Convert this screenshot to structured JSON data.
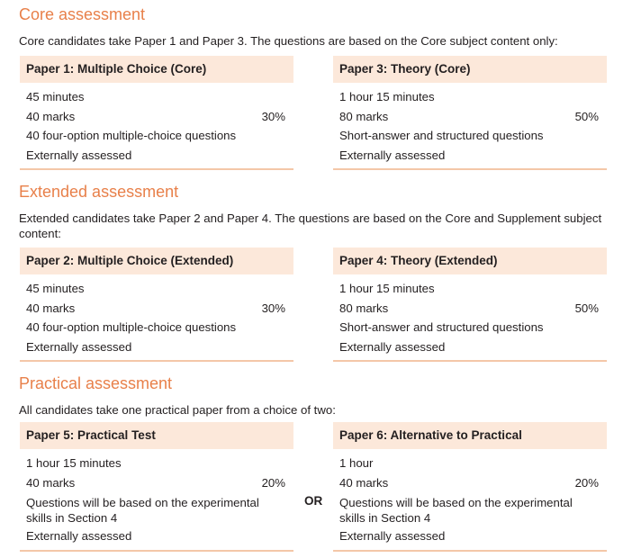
{
  "sections": [
    {
      "title": "Core assessment",
      "description": "Core candidates take Paper 1 and Paper 3. The questions are based on the Core subject content only:",
      "papers": [
        {
          "name": "Paper 1: Multiple Choice (Core)",
          "duration": "45 minutes",
          "marks": "40 marks",
          "weighting": "30%",
          "questions": "40 four-option multiple-choice questions",
          "assessment": "Externally assessed"
        },
        {
          "name": "Paper 3: Theory (Core)",
          "duration": "1 hour 15 minutes",
          "marks": "80 marks",
          "weighting": "50%",
          "questions": "Short-answer and structured questions",
          "assessment": "Externally assessed"
        }
      ]
    },
    {
      "title": "Extended assessment",
      "description": "Extended candidates take Paper 2 and Paper 4. The questions are based on the Core and Supplement subject content:",
      "papers": [
        {
          "name": "Paper 2: Multiple Choice (Extended)",
          "duration": "45 minutes",
          "marks": "40 marks",
          "weighting": "30%",
          "questions": "40 four-option multiple-choice questions",
          "assessment": "Externally assessed"
        },
        {
          "name": "Paper 4: Theory (Extended)",
          "duration": "1 hour 15 minutes",
          "marks": "80 marks",
          "weighting": "50%",
          "questions": "Short-answer and structured questions",
          "assessment": "Externally assessed"
        }
      ]
    },
    {
      "title": "Practical assessment",
      "description": "All candidates take one practical paper from a choice of two:",
      "or_label": "OR",
      "papers": [
        {
          "name": "Paper 5: Practical Test",
          "duration": "1 hour 15 minutes",
          "marks": "40 marks",
          "weighting": "20%",
          "questions": "Questions will be based on the experimental skills in Section 4",
          "assessment": "Externally assessed"
        },
        {
          "name": "Paper 6: Alternative to Practical",
          "duration": "1 hour",
          "marks": "40 marks",
          "weighting": "20%",
          "questions": "Questions will be based on the experimental skills in Section 4",
          "assessment": "Externally assessed"
        }
      ]
    }
  ],
  "colors": {
    "accent": "#e8804a",
    "header_bg": "#fce8da",
    "rule": "#f4c7a8"
  }
}
